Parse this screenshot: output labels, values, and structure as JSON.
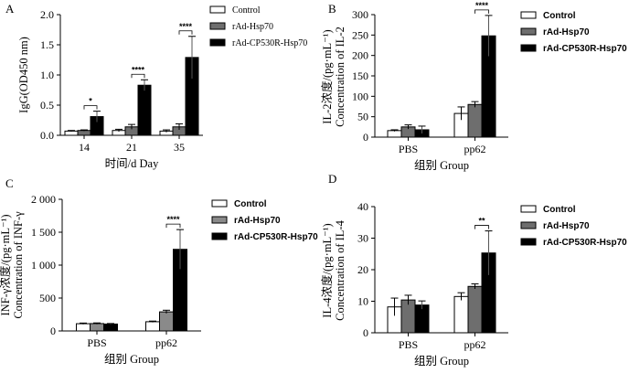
{
  "chart_data": [
    {
      "panel": "A",
      "type": "bar",
      "categories": [
        "14",
        "21",
        "35"
      ],
      "xlabel": "时间/d Day",
      "ylabel": "IgG(OD450 nm)",
      "ylim": [
        0,
        2.0
      ],
      "yticks": [
        0,
        0.5,
        1.0,
        1.5,
        2.0
      ],
      "ytick_labels": [
        "0.0",
        "0.5",
        "1.0",
        "1.5",
        "2.0"
      ],
      "legend": "top-right",
      "series": [
        {
          "name": "Control",
          "color": "#ffffff",
          "values": [
            0.07,
            0.08,
            0.07
          ],
          "errors": [
            0.01,
            0.02,
            0.02
          ]
        },
        {
          "name": "rAd-Hsp70",
          "color": "#6e6e6e",
          "values": [
            0.08,
            0.14,
            0.14
          ],
          "errors": [
            0.01,
            0.04,
            0.05
          ]
        },
        {
          "name": "rAd-CP530R-Hsp70",
          "color": "#000000",
          "values": [
            0.31,
            0.83,
            1.29
          ],
          "errors": [
            0.09,
            0.09,
            0.35
          ]
        }
      ],
      "significance": [
        {
          "category": "14",
          "label": "*"
        },
        {
          "category": "21",
          "label": "****"
        },
        {
          "category": "35",
          "label": "****"
        }
      ]
    },
    {
      "panel": "B",
      "type": "bar",
      "categories": [
        "PBS",
        "pp62"
      ],
      "xlabel": "组别 Group",
      "ylabel_lines": [
        "IL-2浓度/(pg·mL⁻¹)",
        "Concentration of IL-2"
      ],
      "ylim": [
        0,
        300
      ],
      "yticks": [
        0,
        50,
        100,
        150,
        200,
        250,
        300
      ],
      "ytick_labels": [
        "0",
        "50",
        "100",
        "150",
        "200",
        "250",
        "300"
      ],
      "legend": "top-right",
      "series": [
        {
          "name": "Control",
          "color": "#ffffff",
          "values": [
            16,
            58
          ],
          "errors": [
            2,
            16
          ]
        },
        {
          "name": "rAd-Hsp70",
          "color": "#6e6e6e",
          "values": [
            25,
            80
          ],
          "errors": [
            5,
            7
          ]
        },
        {
          "name": "rAd-CP530R-Hsp70",
          "color": "#000000",
          "values": [
            18,
            248
          ],
          "errors": [
            9,
            50
          ]
        }
      ],
      "significance": [
        {
          "category": "pp62",
          "label": "****"
        }
      ]
    },
    {
      "panel": "C",
      "type": "bar",
      "categories": [
        "PBS",
        "pp62"
      ],
      "xlabel": "组别 Group",
      "ylabel_lines": [
        "INF-γ浓度/(pg·mL⁻¹)",
        "Concentration of INF-γ"
      ],
      "ylim": [
        0,
        2000
      ],
      "yticks": [
        0,
        500,
        1000,
        1500,
        2000
      ],
      "ytick_labels": [
        "0",
        "500",
        "1 000",
        "1 500",
        "2 000"
      ],
      "legend": "top-right",
      "series": [
        {
          "name": "Control",
          "color": "#ffffff",
          "values": [
            110,
            140
          ],
          "errors": [
            10,
            10
          ]
        },
        {
          "name": "rAd-Hsp70",
          "color": "#8a8a8a",
          "values": [
            112,
            290
          ],
          "errors": [
            10,
            25
          ]
        },
        {
          "name": "rAd-CP530R-Hsp70",
          "color": "#000000",
          "values": [
            105,
            1240
          ],
          "errors": [
            8,
            300
          ]
        }
      ],
      "significance": [
        {
          "category": "pp62",
          "label": "****"
        }
      ]
    },
    {
      "panel": "D",
      "type": "bar",
      "categories": [
        "PBS",
        "pp62"
      ],
      "xlabel": "组别 Group",
      "ylabel_lines": [
        "IL-4浓度/(pg·mL⁻¹)",
        "Concentration of IL-4"
      ],
      "ylim": [
        0,
        40
      ],
      "yticks": [
        0,
        10,
        20,
        30,
        40
      ],
      "ytick_labels": [
        "0",
        "10",
        "20",
        "30",
        "40"
      ],
      "legend": "top-right",
      "series": [
        {
          "name": "Control",
          "color": "#ffffff",
          "values": [
            8.2,
            11.5
          ],
          "errors": [
            2.8,
            1.2
          ]
        },
        {
          "name": "rAd-Hsp70",
          "color": "#6e6e6e",
          "values": [
            10.4,
            14.7
          ],
          "errors": [
            1.5,
            0.8
          ]
        },
        {
          "name": "rAd-CP530R-Hsp70",
          "color": "#000000",
          "values": [
            8.8,
            25.3
          ],
          "errors": [
            1.3,
            7.0
          ]
        }
      ],
      "significance": [
        {
          "category": "pp62",
          "label": "**"
        }
      ]
    }
  ]
}
